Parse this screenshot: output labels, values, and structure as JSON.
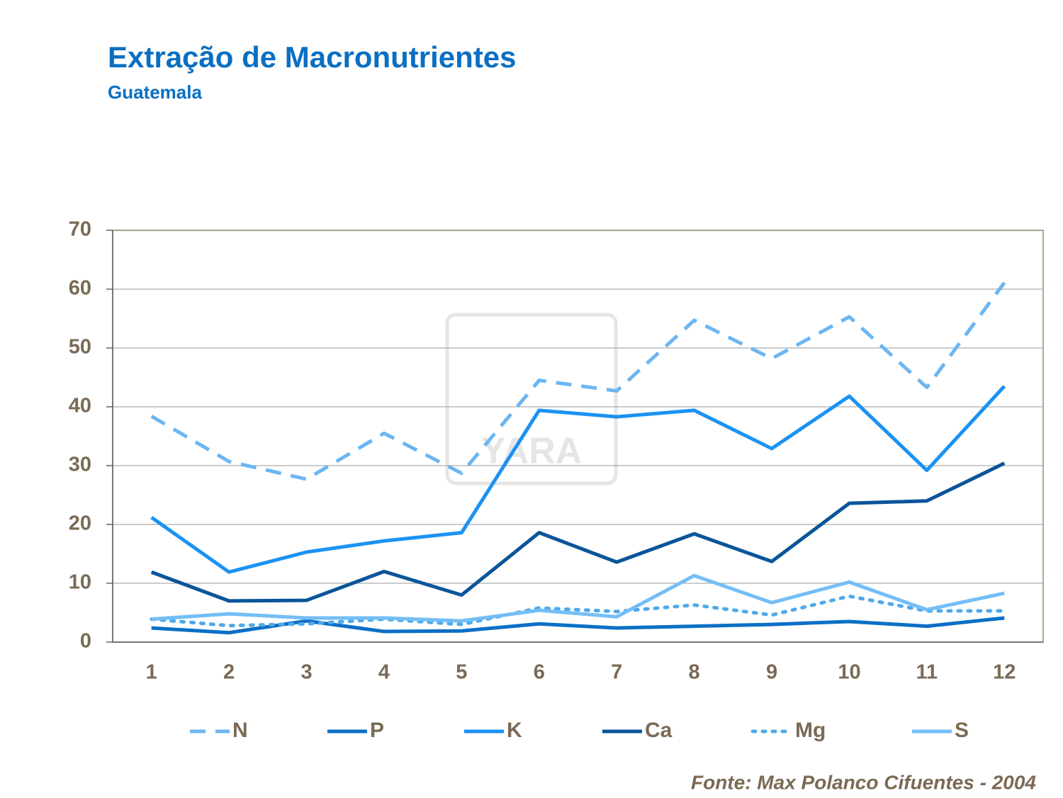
{
  "chart_data": {
    "type": "line",
    "title": "Extração de Macronutrientes",
    "subtitle": "Guatemala",
    "source": "Fonte: Max Polanco Cifuentes - 2004",
    "watermark": "YARA",
    "categories": [
      1,
      2,
      3,
      4,
      5,
      6,
      7,
      8,
      9,
      10,
      11,
      12
    ],
    "series": [
      {
        "name": "N",
        "color": "#6cb6f2",
        "style": "dashed",
        "values": [
          38.4,
          30.7,
          27.7,
          35.5,
          28.7,
          44.5,
          42.7,
          54.7,
          48.2,
          55.3,
          43.3,
          61.1
        ]
      },
      {
        "name": "P",
        "color": "#0b6fc6",
        "style": "solid",
        "values": [
          2.4,
          1.6,
          3.6,
          1.8,
          1.9,
          3.1,
          2.4,
          2.7,
          3.0,
          3.5,
          2.7,
          4.1
        ]
      },
      {
        "name": "K",
        "color": "#1b92f2",
        "style": "solid",
        "values": [
          21.2,
          11.9,
          15.3,
          17.2,
          18.6,
          39.4,
          38.3,
          39.4,
          32.9,
          41.8,
          29.2,
          43.5
        ]
      },
      {
        "name": "Ca",
        "color": "#0a5599",
        "style": "solid",
        "values": [
          11.9,
          7.0,
          7.1,
          12.0,
          8.0,
          18.6,
          13.6,
          18.4,
          13.7,
          23.6,
          24.0,
          30.4
        ]
      },
      {
        "name": "Mg",
        "color": "#4ea9ea",
        "style": "dotted",
        "values": [
          3.9,
          2.8,
          3.1,
          3.9,
          3.0,
          5.8,
          5.2,
          6.3,
          4.6,
          7.8,
          5.3,
          5.3
        ]
      },
      {
        "name": "S",
        "color": "#74bef6",
        "style": "solid",
        "values": [
          3.9,
          4.8,
          4.1,
          4.1,
          3.6,
          5.4,
          4.3,
          11.3,
          6.7,
          10.2,
          5.5,
          8.3
        ]
      }
    ],
    "ylim": [
      0,
      70
    ],
    "yticks": [
      0,
      10,
      20,
      30,
      40,
      50,
      60,
      70
    ],
    "grid": true,
    "legend": "bottom"
  }
}
